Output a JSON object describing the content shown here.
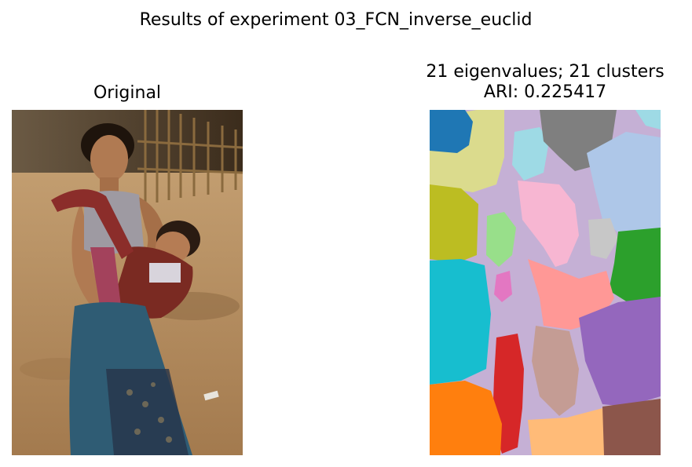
{
  "figure": {
    "suptitle": "Results of experiment 03_FCN_inverse_euclid"
  },
  "left_panel": {
    "title": "Original",
    "image_description_name": "photo-woman-carrying-baby"
  },
  "right_panel": {
    "title_line1": "21 eigenvalues; 21 clusters",
    "title_line2": "ARI: 0.225417",
    "cluster_count": 21,
    "palette": {
      "blue": "#1f77b4",
      "orange": "#ff7f0e",
      "light_orange": "#ffbb78",
      "green": "#2ca02c",
      "light_green": "#98df8a",
      "red": "#d62728",
      "light_red": "#ff9896",
      "purple": "#9467bd",
      "lavender": "#c5b0d5",
      "brown": "#8c564b",
      "tan": "#c49c94",
      "pink": "#e377c2",
      "light_pink": "#f7b6d2",
      "gray": "#7f7f7f",
      "light_gray": "#c7c7c7",
      "olive": "#bcbd22",
      "khaki": "#dbdb8d",
      "cyan": "#17becf",
      "light_cyan": "#9edae5",
      "light_blue": "#aec7e8"
    }
  }
}
